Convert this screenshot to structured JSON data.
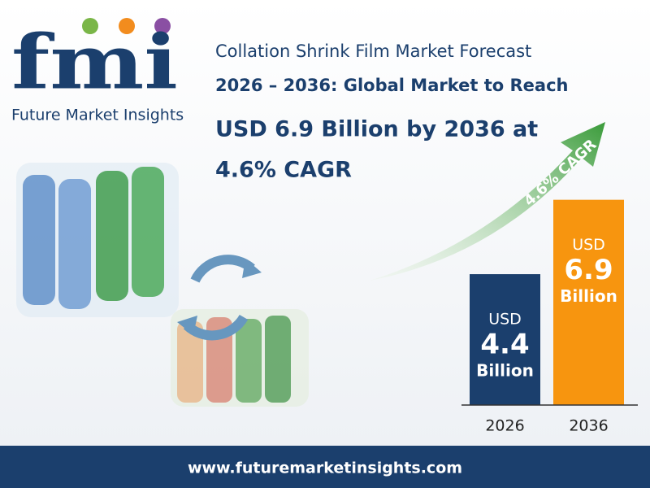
{
  "logo": {
    "mark": "fmi",
    "name": "Future Market Insights"
  },
  "title_lines": [
    "Collation Shrink Film Market Forecast",
    "2026 – 2036: Global Market to Reach",
    "USD 6.9 Billion by 2036 at",
    "4.6% CAGR"
  ],
  "chart_data": {
    "type": "bar",
    "annotation": "4.6% CAGR",
    "categories": [
      "2026",
      "2036"
    ],
    "values": [
      4.4,
      6.9
    ],
    "colors": [
      "#1b3f6d",
      "#f7950f"
    ],
    "unit_prefix": "USD",
    "unit_suffix": "Billion",
    "ylim": [
      0,
      7
    ]
  },
  "footer": "www.futuremarketinsights.com"
}
